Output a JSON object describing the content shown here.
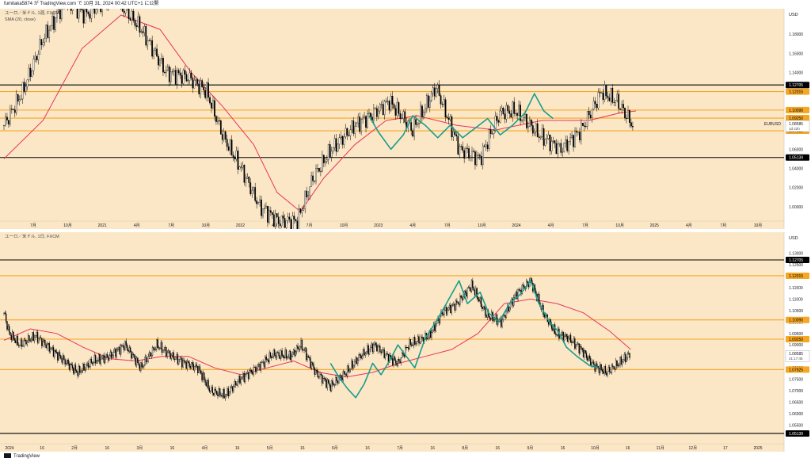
{
  "header": {
    "text": "fumitaka5874 が TradingView.com で 10月 31, 2024 00:42 UTC+1 に公開"
  },
  "footer": {
    "brand": "TradingView"
  },
  "colors": {
    "background": "#fbe7c6",
    "up_candle": "#ffffff",
    "down_candle": "#000000",
    "sma": "#e8345a",
    "wave": "#1a9c8c",
    "resistance": "#f5a623",
    "support": "#000000"
  },
  "chart_data": [
    {
      "type": "candlestick",
      "title": "ユーロ／米ドル, 1週, FXCM",
      "indicator": "SMA (20, close)",
      "symbol": "EURUSD",
      "last_price": "1.08585",
      "countdown": "1d 22h",
      "currency": "USD",
      "ylim": [
        0.99,
        1.2
      ],
      "y_ticks": [
        "1.18000",
        "1.16000",
        "1.14000",
        "1.12000",
        "1.10000",
        "1.08000",
        "1.06000",
        "1.04000",
        "1.02000",
        "1.00000"
      ],
      "x_ticks": [
        "7月",
        "10月",
        "2021",
        "4月",
        "7月",
        "10月",
        "2022",
        "4月",
        "7月",
        "10月",
        "2023",
        "4月",
        "7月",
        "10月",
        "2024",
        "4月",
        "7月",
        "10月",
        "2025",
        "4月",
        "7月",
        "10月"
      ],
      "levels": [
        {
          "price": 1.12705,
          "label": "1.12705",
          "color": "#000000"
        },
        {
          "price": 1.12015,
          "label": "1.12015",
          "color": "#f5a623"
        },
        {
          "price": 1.1009,
          "label": "1.10090",
          "color": "#f5a623"
        },
        {
          "price": 1.0925,
          "label": "1.09250",
          "color": "#f5a623"
        },
        {
          "price": 1.07925,
          "label": "1.07925",
          "color": "#f5a623"
        },
        {
          "price": 1.05139,
          "label": "1.05139",
          "color": "#000000"
        }
      ],
      "price_path": [
        [
          0,
          1.085
        ],
        [
          12,
          1.12
        ],
        [
          25,
          1.175
        ],
        [
          40,
          1.215
        ],
        [
          52,
          1.2
        ],
        [
          70,
          1.22
        ],
        [
          88,
          1.185
        ],
        [
          104,
          1.14
        ],
        [
          118,
          1.135
        ],
        [
          130,
          1.12
        ],
        [
          140,
          1.075
        ],
        [
          152,
          1.04
        ],
        [
          164,
          1.0
        ],
        [
          176,
          0.985
        ],
        [
          188,
          0.985
        ],
        [
          198,
          1.03
        ],
        [
          210,
          1.06
        ],
        [
          225,
          1.085
        ],
        [
          235,
          1.095
        ],
        [
          247,
          1.11
        ],
        [
          262,
          1.08
        ],
        [
          277,
          1.125
        ],
        [
          292,
          1.06
        ],
        [
          305,
          1.05
        ],
        [
          318,
          1.098
        ],
        [
          328,
          1.1
        ],
        [
          343,
          1.075
        ],
        [
          357,
          1.06
        ],
        [
          370,
          1.08
        ],
        [
          383,
          1.12
        ],
        [
          393,
          1.11
        ],
        [
          403,
          1.085
        ]
      ],
      "sma_path": [
        [
          0,
          1.05
        ],
        [
          25,
          1.09
        ],
        [
          50,
          1.165
        ],
        [
          75,
          1.2
        ],
        [
          100,
          1.185
        ],
        [
          120,
          1.14
        ],
        [
          140,
          1.105
        ],
        [
          160,
          1.065
        ],
        [
          175,
          1.015
        ],
        [
          190,
          0.995
        ],
        [
          205,
          1.03
        ],
        [
          225,
          1.065
        ],
        [
          245,
          1.09
        ],
        [
          265,
          1.095
        ],
        [
          290,
          1.085
        ],
        [
          315,
          1.08
        ],
        [
          345,
          1.09
        ],
        [
          375,
          1.09
        ],
        [
          395,
          1.098
        ],
        [
          405,
          1.1
        ]
      ],
      "wave_path": [
        [
          234,
          1.095
        ],
        [
          240,
          1.078
        ],
        [
          248,
          1.06
        ],
        [
          256,
          1.075
        ],
        [
          262,
          1.095
        ],
        [
          270,
          1.085
        ],
        [
          278,
          1.072
        ],
        [
          286,
          1.085
        ],
        [
          294,
          1.072
        ],
        [
          302,
          1.082
        ],
        [
          310,
          1.092
        ],
        [
          318,
          1.075
        ],
        [
          326,
          1.085
        ],
        [
          334,
          1.098
        ],
        [
          340,
          1.118
        ],
        [
          346,
          1.1
        ],
        [
          352,
          1.092
        ]
      ]
    },
    {
      "type": "candlestick",
      "title": "ユーロ／米ドル, 1日, FXCM",
      "symbol": "EURUSD",
      "last_price": "1.08585",
      "countdown": "21:17:45",
      "currency": "USD",
      "ylim": [
        1.05,
        1.135
      ],
      "y_ticks": [
        "1.13000",
        "1.12500",
        "1.12000",
        "1.11500",
        "1.11000",
        "1.10500",
        "1.10000",
        "1.09500",
        "1.09000",
        "1.08500",
        "1.08000",
        "1.07500",
        "1.07000",
        "1.06500",
        "1.06000",
        "1.05500"
      ],
      "x_ticks": [
        "2024",
        "16",
        "2月",
        "16",
        "3月",
        "16",
        "4月",
        "16",
        "5月",
        "16",
        "6月",
        "16",
        "7月",
        "16",
        "8月",
        "16",
        "9月",
        "16",
        "10月",
        "16",
        "11月",
        "12月",
        "17",
        "2025"
      ],
      "levels": [
        {
          "price": 1.12705,
          "label": "1.12705",
          "color": "#000000"
        },
        {
          "price": 1.12015,
          "label": "1.12015",
          "color": "#f5a623"
        },
        {
          "price": 1.1009,
          "label": "1.10090",
          "color": "#f5a623"
        },
        {
          "price": 1.0925,
          "label": "1.09250",
          "color": "#f5a623"
        },
        {
          "price": 1.07925,
          "label": "1.07925",
          "color": "#f5a623"
        },
        {
          "price": 1.05139,
          "label": "1.05139",
          "color": "#000000"
        }
      ],
      "price_path": [
        [
          0,
          1.104
        ],
        [
          5,
          1.095
        ],
        [
          15,
          1.09
        ],
        [
          30,
          1.094
        ],
        [
          45,
          1.088
        ],
        [
          60,
          1.082
        ],
        [
          70,
          1.078
        ],
        [
          85,
          1.083
        ],
        [
          100,
          1.085
        ],
        [
          115,
          1.09
        ],
        [
          130,
          1.08
        ],
        [
          145,
          1.09
        ],
        [
          160,
          1.085
        ],
        [
          172,
          1.082
        ],
        [
          184,
          1.08
        ],
        [
          196,
          1.07
        ],
        [
          210,
          1.068
        ],
        [
          224,
          1.075
        ],
        [
          240,
          1.08
        ],
        [
          256,
          1.086
        ],
        [
          272,
          1.085
        ],
        [
          282,
          1.09
        ],
        [
          296,
          1.078
        ],
        [
          310,
          1.072
        ],
        [
          325,
          1.078
        ],
        [
          338,
          1.085
        ],
        [
          352,
          1.09
        ],
        [
          364,
          1.085
        ],
        [
          374,
          1.082
        ],
        [
          384,
          1.09
        ],
        [
          394,
          1.092
        ],
        [
          404,
          1.094
        ],
        [
          416,
          1.104
        ],
        [
          430,
          1.108
        ],
        [
          444,
          1.116
        ],
        [
          458,
          1.103
        ],
        [
          472,
          1.1
        ],
        [
          486,
          1.112
        ],
        [
          500,
          1.118
        ],
        [
          512,
          1.104
        ],
        [
          524,
          1.095
        ],
        [
          536,
          1.093
        ],
        [
          548,
          1.088
        ],
        [
          560,
          1.081
        ],
        [
          572,
          1.078
        ],
        [
          584,
          1.082
        ],
        [
          594,
          1.086
        ]
      ],
      "sma_path": [
        [
          0,
          1.092
        ],
        [
          25,
          1.097
        ],
        [
          50,
          1.095
        ],
        [
          75,
          1.089
        ],
        [
          100,
          1.084
        ],
        [
          125,
          1.083
        ],
        [
          150,
          1.085
        ],
        [
          175,
          1.085
        ],
        [
          200,
          1.08
        ],
        [
          225,
          1.077
        ],
        [
          250,
          1.08
        ],
        [
          275,
          1.083
        ],
        [
          300,
          1.078
        ],
        [
          325,
          1.076
        ],
        [
          350,
          1.078
        ],
        [
          375,
          1.082
        ],
        [
          400,
          1.085
        ],
        [
          425,
          1.088
        ],
        [
          450,
          1.095
        ],
        [
          475,
          1.108
        ],
        [
          500,
          1.11
        ],
        [
          525,
          1.108
        ],
        [
          550,
          1.104
        ],
        [
          575,
          1.096
        ],
        [
          595,
          1.088
        ]
      ],
      "wave_path": [
        [
          310,
          1.082
        ],
        [
          318,
          1.076
        ],
        [
          326,
          1.071
        ],
        [
          334,
          1.067
        ],
        [
          342,
          1.073
        ],
        [
          350,
          1.082
        ],
        [
          358,
          1.077
        ],
        [
          366,
          1.083
        ],
        [
          374,
          1.09
        ],
        [
          382,
          1.085
        ],
        [
          390,
          1.08
        ],
        [
          400,
          1.093
        ],
        [
          410,
          1.1
        ],
        [
          420,
          1.108
        ],
        [
          432,
          1.118
        ],
        [
          440,
          1.108
        ],
        [
          452,
          1.113
        ],
        [
          460,
          1.104
        ],
        [
          470,
          1.1
        ],
        [
          480,
          1.108
        ],
        [
          490,
          1.112
        ],
        [
          500,
          1.118
        ],
        [
          508,
          1.108
        ],
        [
          518,
          1.1
        ],
        [
          526,
          1.096
        ],
        [
          534,
          1.089
        ],
        [
          544,
          1.085
        ],
        [
          556,
          1.081
        ],
        [
          564,
          1.08
        ]
      ]
    }
  ]
}
